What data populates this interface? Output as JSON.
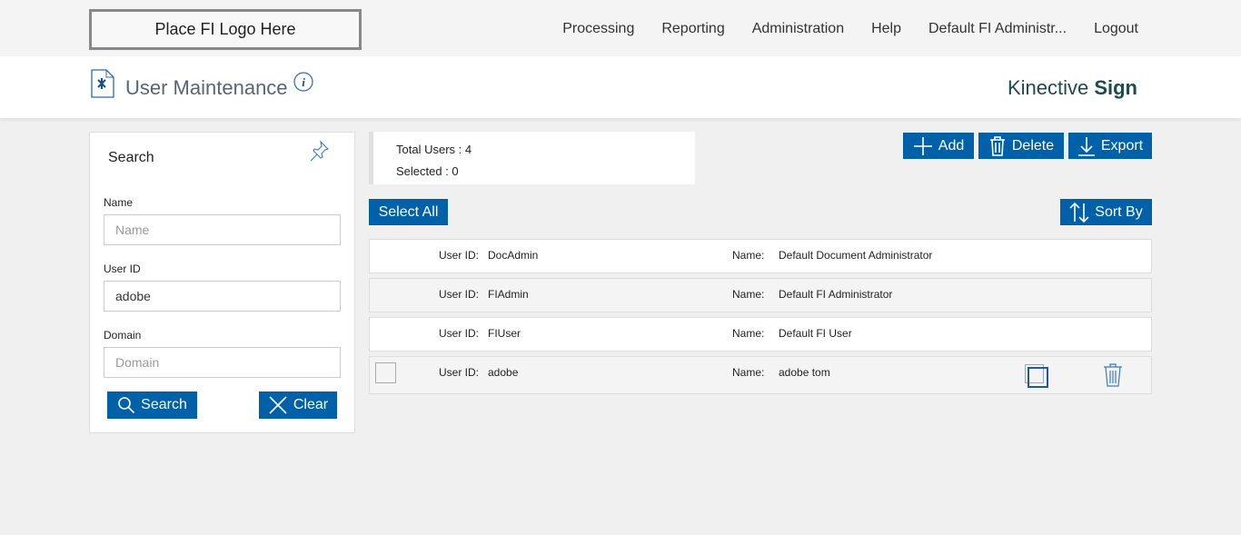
{
  "header": {
    "logo": "Place FI Logo Here",
    "nav": [
      "Processing",
      "Reporting",
      "Administration",
      "Help",
      "Default FI Administr...",
      "Logout"
    ]
  },
  "page": {
    "title": "User Maintenance",
    "brand_light": "Kinective ",
    "brand_bold": "Sign"
  },
  "search": {
    "title": "Search",
    "name_label": "Name",
    "name_placeholder": "Name",
    "name_value": "",
    "userid_label": "User ID",
    "userid_value": "adobe",
    "domain_label": "Domain",
    "domain_placeholder": "Domain",
    "search_btn": "Search",
    "clear_btn": "Clear"
  },
  "stats": {
    "total": "Total Users : 4",
    "selected": "Selected : 0"
  },
  "toolbar": {
    "add": "Add",
    "delete": "Delete",
    "export": "Export",
    "select_all": "Select All",
    "sort_by": "Sort By"
  },
  "labels": {
    "userid": "User ID:",
    "name": "Name:"
  },
  "users": [
    {
      "id": "DocAdmin",
      "name": "Default Document Administrator"
    },
    {
      "id": "FIAdmin",
      "name": "Default FI Administrator"
    },
    {
      "id": "FIUser",
      "name": "Default FI User"
    },
    {
      "id": "adobe",
      "name": "adobe tom"
    }
  ],
  "colors": {
    "accent": "#0060a8"
  }
}
